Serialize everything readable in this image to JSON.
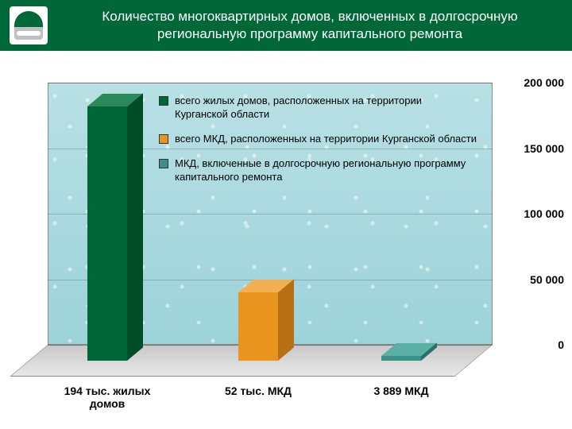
{
  "header": {
    "title": "Количество многоквартирных домов,\nвключенных в долгосрочную региональную программу\nкапитального ремонта"
  },
  "chart": {
    "type": "bar",
    "background_color": "#a8d8de",
    "floor_color": "#d8d8d8",
    "ylim": [
      0,
      200000
    ],
    "ytick_step": 50000,
    "yticks": [
      {
        "value": 0,
        "label": "0"
      },
      {
        "value": 50000,
        "label": "50 000"
      },
      {
        "value": 100000,
        "label": "100 000"
      },
      {
        "value": 150000,
        "label": "150 000"
      },
      {
        "value": 200000,
        "label": "200 000"
      }
    ],
    "bars": [
      {
        "value": 194000,
        "x_label": "194 тыс. жилых домов",
        "front_color": "#006838",
        "top_color": "#2a8a5a",
        "side_color": "#004d28"
      },
      {
        "value": 52000,
        "x_label": "52 тыс. МКД",
        "front_color": "#e8941e",
        "top_color": "#f4b050",
        "side_color": "#b87016"
      },
      {
        "value": 3889,
        "x_label": "3 889 МКД",
        "front_color": "#3a9188",
        "top_color": "#5ab0a5",
        "side_color": "#2a6f68"
      }
    ],
    "legend": [
      {
        "color": "#006838",
        "text": "всего жилых домов, расположенных на территории Курганской области"
      },
      {
        "color": "#e8941e",
        "text": "всего МКД, расположенных на территории Курганской области"
      },
      {
        "color": "#3a9188",
        "text": "МКД, включенные в долгосрочную региональную программу капитального ремонта"
      }
    ]
  }
}
